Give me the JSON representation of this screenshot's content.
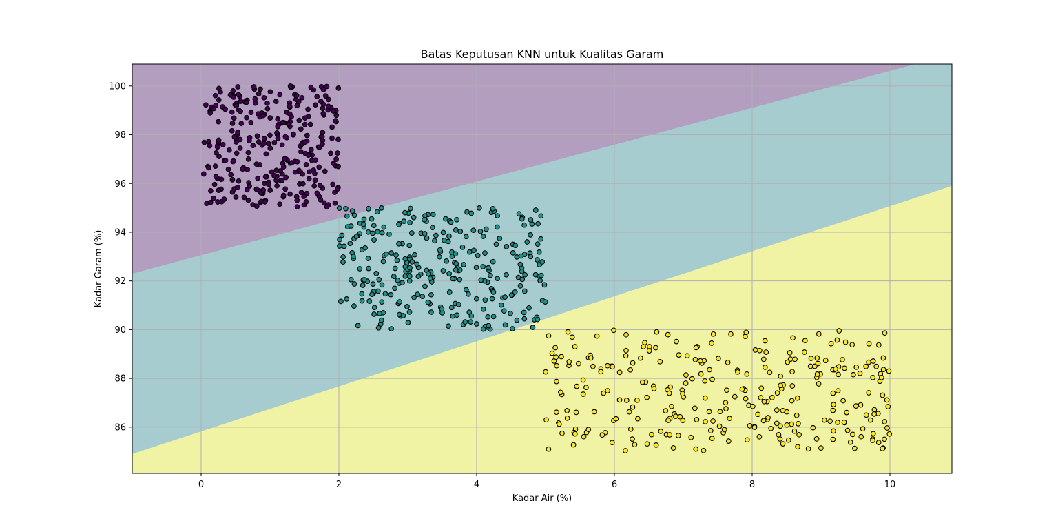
{
  "chart_data": {
    "type": "scatter",
    "title": "Batas Keputusan KNN untuk Kualitas Garam",
    "xlabel": "Kadar Air (%)",
    "ylabel": "Kadar Garam (%)",
    "xlim": [
      -1,
      10.9
    ],
    "ylim": [
      84.1,
      100.9
    ],
    "xticks": [
      0,
      2,
      4,
      6,
      8,
      10
    ],
    "yticks": [
      86,
      88,
      90,
      92,
      94,
      96,
      98,
      100
    ],
    "grid": true,
    "legend": "none",
    "colors": {
      "region_0": "#b39ec0",
      "region_1": "#a6ccd0",
      "region_2": "#f0f2a4",
      "class_0": "#440154",
      "class_1": "#21918c",
      "class_2": "#fde725",
      "edge": "#000000",
      "grid": "#b0b0b0"
    },
    "decision_boundaries": [
      {
        "between": [
          "class_0",
          "class_1"
        ],
        "x": [
          -1,
          10.9
        ],
        "y": [
          92.3,
          101.3
        ]
      },
      {
        "between": [
          "class_1",
          "class_2"
        ],
        "x": [
          -1,
          10.9
        ],
        "y": [
          84.9,
          95.9
        ]
      }
    ],
    "series": [
      {
        "class": "class_0",
        "x_range": [
          0,
          2
        ],
        "y_range": [
          95,
          100
        ],
        "count": 300
      },
      {
        "class": "class_1",
        "x_range": [
          2,
          5
        ],
        "y_range": [
          90,
          95
        ],
        "count": 300
      },
      {
        "class": "class_2",
        "x_range": [
          5,
          10
        ],
        "y_range": [
          85,
          90
        ],
        "count": 300
      }
    ]
  }
}
